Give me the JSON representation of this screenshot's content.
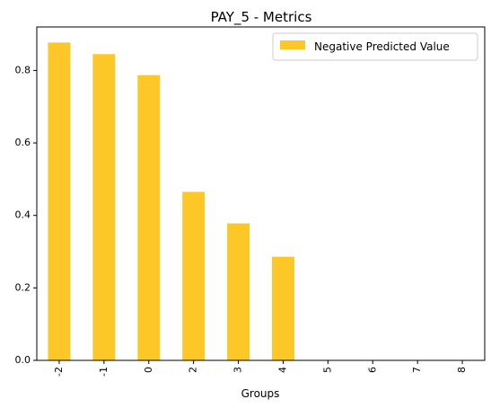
{
  "chart_data": {
    "type": "bar",
    "title": "PAY_5 - Metrics",
    "xlabel": "Groups",
    "ylabel": "",
    "categories": [
      "-2",
      "-1",
      "0",
      "2",
      "3",
      "4",
      "5",
      "6",
      "7",
      "8"
    ],
    "series": [
      {
        "name": "Negative Predicted Value",
        "values": [
          0.877,
          0.845,
          0.787,
          0.465,
          0.378,
          0.286,
          0,
          0,
          0,
          0
        ],
        "color": "#fdc727"
      }
    ],
    "ylim": [
      0,
      0.92
    ],
    "yticks": [
      0.0,
      0.2,
      0.4,
      0.6,
      0.8
    ],
    "ytick_labels": [
      "0.0",
      "0.2",
      "0.4",
      "0.6",
      "0.8"
    ],
    "xtick_rotation": "vertical",
    "grid": false,
    "legend_position": "top-right"
  }
}
